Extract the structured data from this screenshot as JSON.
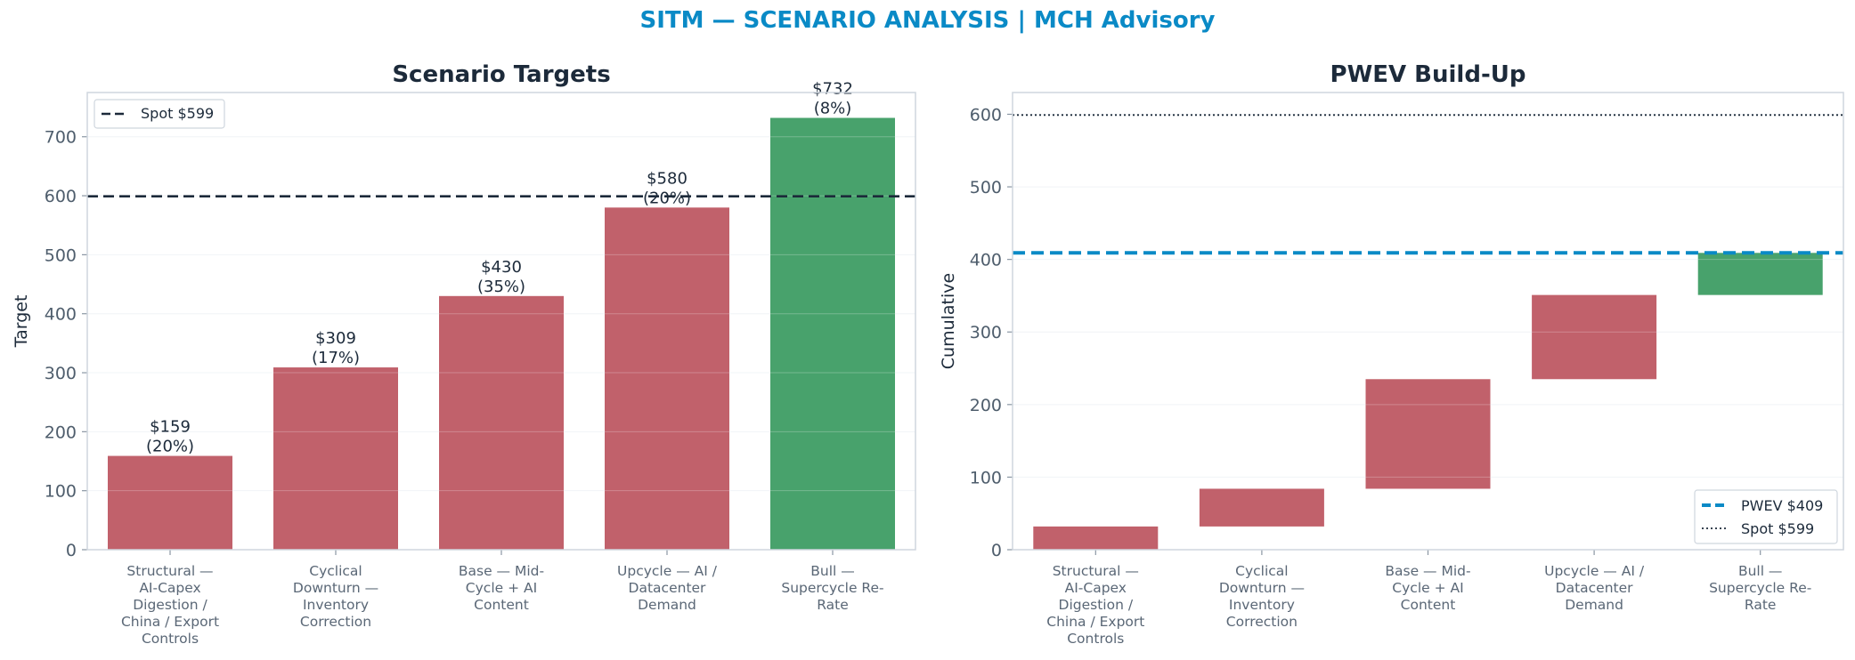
{
  "suptitle": "SITM — SCENARIO ANALYSIS | MCH Advisory",
  "colors": {
    "negative": "#c1616b",
    "positive": "#48a26c",
    "accent": "#0a8ac6",
    "dark": "#1c2a3a"
  },
  "chart_data": [
    {
      "type": "bar",
      "title": "Scenario Targets",
      "xlabel": "",
      "ylabel": "Target",
      "ylim": [
        0,
        775
      ],
      "yticks": [
        0,
        100,
        200,
        300,
        400,
        500,
        600,
        700
      ],
      "categories": [
        [
          "Structural —",
          "AI-Capex",
          "Digestion /",
          "China / Export",
          "Controls"
        ],
        [
          "Cyclical",
          "Downturn —",
          "Inventory",
          "Correction"
        ],
        [
          "Base — Mid-",
          "Cycle + AI",
          "Content"
        ],
        [
          "Upcycle — AI /",
          "Datacenter",
          "Demand"
        ],
        [
          "Bull —",
          "Supercycle Re-",
          "Rate"
        ]
      ],
      "values": [
        159,
        309,
        430,
        580,
        732
      ],
      "data_labels": [
        [
          "$159",
          "(20%)"
        ],
        [
          "$309",
          "(17%)"
        ],
        [
          "$430",
          "(35%)"
        ],
        [
          "$580",
          "(20%)"
        ],
        [
          "$732",
          "(8%)"
        ]
      ],
      "bar_colors": [
        "#c1616b",
        "#c1616b",
        "#c1616b",
        "#c1616b",
        "#48a26c"
      ],
      "reference_lines": [
        {
          "y": 599,
          "style": "dashed",
          "label": "Spot $599"
        }
      ],
      "legend_placement": "top-left",
      "grid": true
    },
    {
      "type": "bar",
      "subtype": "waterfall",
      "title": "PWEV Build-Up",
      "xlabel": "",
      "ylabel": "Cumulative",
      "ylim": [
        0,
        630
      ],
      "yticks": [
        0,
        100,
        200,
        300,
        400,
        500,
        600
      ],
      "categories": [
        [
          "Structural —",
          "AI-Capex",
          "Digestion /",
          "China / Export",
          "Controls"
        ],
        [
          "Cyclical",
          "Downturn —",
          "Inventory",
          "Correction"
        ],
        [
          "Base — Mid-",
          "Cycle + AI",
          "Content"
        ],
        [
          "Upcycle — AI /",
          "Datacenter",
          "Demand"
        ],
        [
          "Bull —",
          "Supercycle Re-",
          "Rate"
        ]
      ],
      "base": [
        0,
        32,
        84,
        235,
        351
      ],
      "values": [
        32,
        52,
        151,
        116,
        58
      ],
      "bar_colors": [
        "#c1616b",
        "#c1616b",
        "#c1616b",
        "#c1616b",
        "#48a26c"
      ],
      "reference_lines": [
        {
          "y": 409,
          "style": "dashed",
          "label": "PWEV $409"
        },
        {
          "y": 599,
          "style": "dotted",
          "label": "Spot $599"
        }
      ],
      "legend_placement": "bottom-right",
      "grid": true
    }
  ]
}
